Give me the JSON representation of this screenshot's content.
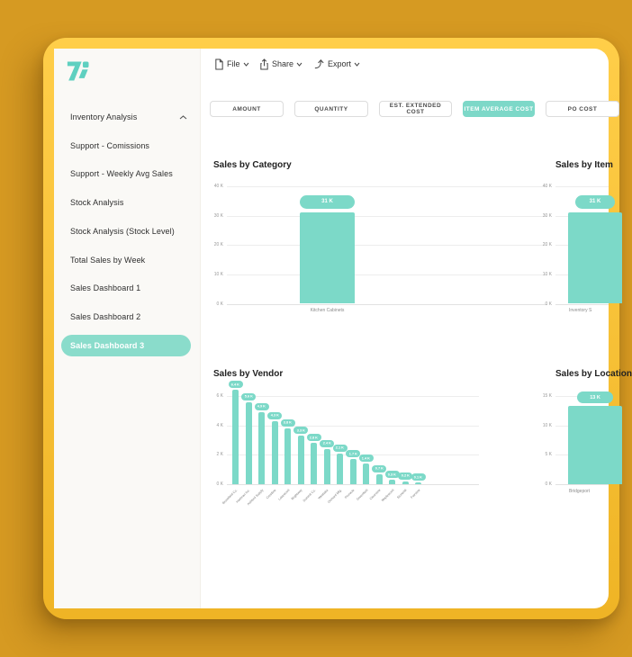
{
  "colors": {
    "accent_teal": "#7cd9c8",
    "active_pill": "#8adccb",
    "window_border": "#fcc63c",
    "background": "#d69a22",
    "sidebar_bg": "#faf9f6"
  },
  "toolbar": {
    "file_label": "File",
    "share_label": "Share",
    "export_label": "Export"
  },
  "filter_tabs": [
    {
      "label": "AMOUNT",
      "active": false
    },
    {
      "label": "QUANTITY",
      "active": false
    },
    {
      "label": "EST. EXTENDED COST",
      "active": false
    },
    {
      "label": "ITEM AVERAGE COST",
      "active": true
    },
    {
      "label": "PO COST",
      "active": false
    }
  ],
  "sidebar": {
    "items": [
      {
        "label": "Inventory Analysis",
        "expanded": true,
        "active": false
      },
      {
        "label": "Support - Comissions",
        "active": false
      },
      {
        "label": "Support - Weekly Avg Sales",
        "active": false
      },
      {
        "label": "Stock Analysis",
        "active": false
      },
      {
        "label": "Stock Analysis (Stock Level)",
        "active": false
      },
      {
        "label": "Total Sales by Week",
        "active": false
      },
      {
        "label": "Sales Dashboard 1",
        "active": false
      },
      {
        "label": "Sales Dashboard 2",
        "active": false
      },
      {
        "label": "Sales Dashboard 3",
        "active": true
      }
    ]
  },
  "chart_data": [
    {
      "type": "bar",
      "title": "Sales by Category",
      "categories": [
        "Kitchen Cabinets"
      ],
      "values": [
        31
      ],
      "value_labels": [
        "31 K"
      ],
      "ticks": [
        {
          "label": "40 K",
          "v": 40
        },
        {
          "label": "30 K",
          "v": 30
        },
        {
          "label": "20 K",
          "v": 20
        },
        {
          "label": "10 K",
          "v": 10
        },
        {
          "label": "0 K",
          "v": 0
        }
      ],
      "ylim": [
        0,
        40
      ],
      "xlabel": "",
      "ylabel": "",
      "grid": true,
      "legend": "none"
    },
    {
      "type": "bar",
      "title": "Sales by Item",
      "categories": [
        "Inventory S"
      ],
      "values": [
        31
      ],
      "value_labels": [
        "31 K"
      ],
      "ticks": [
        {
          "label": "40 K",
          "v": 40
        },
        {
          "label": "30 K",
          "v": 30
        },
        {
          "label": "20 K",
          "v": 20
        },
        {
          "label": "10 K",
          "v": 10
        },
        {
          "label": "0 K",
          "v": 0
        }
      ],
      "ylim": [
        0,
        40
      ],
      "xlabel": "",
      "ylabel": "",
      "grid": true,
      "legend": "none",
      "clipped_right": true
    },
    {
      "type": "bar",
      "title": "Sales by Vendor",
      "categories": [
        "Brookfield Co.",
        "Hartman Inc.",
        "Ashford Supply",
        "Crestline",
        "Lakewood",
        "Brightway",
        "Summit Co.",
        "Westlake",
        "Orchard Mfg.",
        "Pinnacle",
        "Greenfield",
        "Clearview",
        "Maplewood",
        "Stonehill",
        "Fairview"
      ],
      "values": [
        6.4,
        5.6,
        4.9,
        4.3,
        3.8,
        3.3,
        2.8,
        2.4,
        2.1,
        1.7,
        1.4,
        0.7,
        0.3,
        0.2,
        0.1
      ],
      "value_labels": [
        "6.4 K",
        "5.6 K",
        "4.9 K",
        "4.3 K",
        "3.8 K",
        "3.3 K",
        "2.8 K",
        "2.4 K",
        "2.1 K",
        "1.7 K",
        "1.4 K",
        "0.7 K",
        "0.3 K",
        "0.2 K",
        "0.1 K"
      ],
      "ticks": [
        {
          "label": "6 K",
          "v": 6
        },
        {
          "label": "4 K",
          "v": 4
        },
        {
          "label": "2 K",
          "v": 2
        },
        {
          "label": "0 K",
          "v": 0
        }
      ],
      "ylim": [
        0,
        6
      ],
      "xlabel": "",
      "ylabel": "",
      "grid": true,
      "legend": "none",
      "x_labels_rotated": true
    },
    {
      "type": "bar",
      "title": "Sales by Location",
      "categories": [
        "Bridgeport"
      ],
      "values": [
        13.3
      ],
      "value_labels": [
        "13 K"
      ],
      "ticks": [
        {
          "label": "15 K",
          "v": 15
        },
        {
          "label": "10 K",
          "v": 10
        },
        {
          "label": "5 K",
          "v": 5
        },
        {
          "label": "0 K",
          "v": 0
        }
      ],
      "ylim": [
        0,
        15
      ],
      "xlabel": "",
      "ylabel": "",
      "grid": true,
      "legend": "none",
      "clipped_right": true
    }
  ]
}
